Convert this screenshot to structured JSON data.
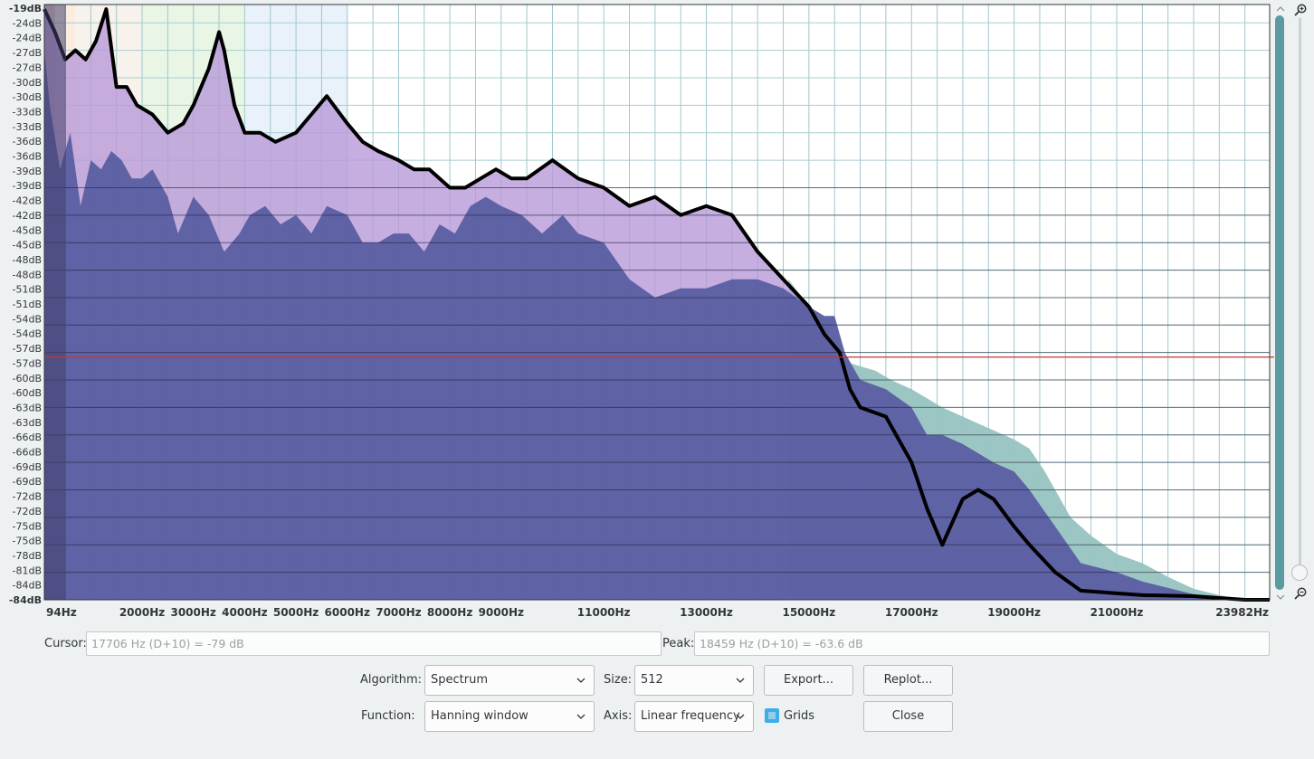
{
  "chart_data": {
    "type": "area",
    "y_ticks_left": [
      "-19dB",
      "-24dB",
      "-24dB",
      "-27dB",
      "-27dB",
      "-30dB",
      "-30dB",
      "-33dB",
      "-33dB",
      "-36dB",
      "-36dB",
      "-39dB",
      "-39dB",
      "-42dB",
      "-42dB",
      "-45dB",
      "-45dB",
      "-48dB",
      "-48dB",
      "-51dB",
      "-51dB",
      "-54dB",
      "-54dB",
      "-57dB",
      "-57dB",
      "-60dB",
      "-60dB",
      "-63dB",
      "-63dB",
      "-66dB",
      "-66dB",
      "-69dB",
      "-69dB",
      "-72dB",
      "-72dB",
      "-75dB",
      "-75dB",
      "-78dB",
      "-81dB",
      "-84dB",
      "-84dB"
    ],
    "x_ticks": [
      "94Hz",
      "2000Hz",
      "3000Hz",
      "4000Hz",
      "5000Hz",
      "6000Hz",
      "7000Hz",
      "8000Hz",
      "9000Hz",
      "11000Hz",
      "13000Hz",
      "15000Hz",
      "17000Hz",
      "19000Hz",
      "21000Hz",
      "23982Hz"
    ],
    "xlim": [
      94,
      23982
    ],
    "ylim": [
      -84,
      -19
    ],
    "grid": true,
    "series": [
      {
        "role": "upper-envelope",
        "color": "#000000",
        "x": [
          94,
          300,
          500,
          700,
          900,
          1100,
          1300,
          1500,
          1700,
          1900,
          2200,
          2500,
          2800,
          3000,
          3300,
          3500,
          3600,
          3800,
          4000,
          4300,
          4600,
          5000,
          5300,
          5600,
          6000,
          6300,
          6600,
          7000,
          7300,
          7600,
          8000,
          8300,
          8600,
          8900,
          9200,
          9500,
          10000,
          10500,
          11000,
          11500,
          12000,
          12500,
          13000,
          13500,
          14000,
          14500,
          15000,
          15300,
          15600,
          15800,
          16000,
          16500,
          17000,
          17300,
          17600,
          18000,
          18300,
          18600,
          19000,
          19300,
          19800,
          20300,
          21000,
          21500,
          22500,
          23500,
          23982
        ],
        "y": [
          -19.5,
          -22,
          -25,
          -24,
          -25,
          -23,
          -19.5,
          -28,
          -28,
          -30,
          -31,
          -33,
          -32,
          -30,
          -26,
          -22,
          -24,
          -30,
          -33,
          -33,
          -34,
          -33,
          -31,
          -29,
          -32,
          -34,
          -35,
          -36,
          -37,
          -37,
          -39,
          -39,
          -38,
          -37,
          -38,
          -38,
          -36,
          -38,
          -39,
          -41,
          -40,
          -42,
          -41,
          -42,
          -46,
          -49,
          -52,
          -55,
          -57,
          -61,
          -63,
          -64,
          -69,
          -74,
          -78,
          -73,
          -72,
          -73,
          -76,
          -78,
          -81,
          -83,
          -83.3,
          -83.5,
          -83.6,
          -84,
          -84
        ]
      },
      {
        "role": "lower-envelope",
        "color": "#5b5fa2",
        "x": [
          94,
          200,
          400,
          600,
          800,
          1000,
          1200,
          1400,
          1600,
          1800,
          2000,
          2200,
          2500,
          2700,
          3000,
          3300,
          3600,
          3900,
          4100,
          4400,
          4700,
          5000,
          5300,
          5600,
          6000,
          6300,
          6600,
          6900,
          7200,
          7500,
          7800,
          8100,
          8400,
          8700,
          9000,
          9400,
          9800,
          10200,
          10500,
          11000,
          11500,
          12000,
          12500,
          13000,
          13500,
          14000,
          14500,
          15000,
          15300,
          15500,
          15700,
          16000,
          16500,
          17000,
          17300,
          17600,
          18000,
          18300,
          18600,
          19000,
          19300,
          19800,
          20300,
          21000,
          21500,
          22500,
          23500,
          23982
        ],
        "y": [
          -24,
          -30,
          -37,
          -33,
          -41,
          -36,
          -37,
          -35,
          -36,
          -38,
          -38,
          -37,
          -40,
          -44,
          -40,
          -42,
          -46,
          -44,
          -42,
          -41,
          -43,
          -42,
          -44,
          -41,
          -42,
          -45,
          -45,
          -44,
          -44,
          -46,
          -43,
          -44,
          -41,
          -40,
          -41,
          -42,
          -44,
          -42,
          -44,
          -45,
          -49,
          -51,
          -50,
          -50,
          -49,
          -49,
          -50,
          -52,
          -53,
          -53,
          -57,
          -60,
          -61,
          -63,
          -66,
          -66,
          -67,
          -68,
          -69,
          -70,
          -72,
          -76,
          -80,
          -81,
          -82,
          -83.4,
          -84,
          -84
        ]
      },
      {
        "role": "secondary-high-band",
        "color": "#97c3c0",
        "x": [
          14600,
          15000,
          15300,
          15500,
          15700,
          16000,
          16300,
          16600,
          17000,
          17300,
          17600,
          18000,
          18400,
          18800,
          19000,
          19300,
          19600,
          19800,
          20100,
          20500,
          21000,
          21500,
          22000,
          22500,
          23000,
          23500,
          23982
        ],
        "y": [
          -49,
          -52,
          -54,
          -57,
          -58,
          -58.5,
          -59,
          -60,
          -61,
          -62,
          -63,
          -64,
          -65,
          -66,
          -66.5,
          -67.5,
          -70,
          -72,
          -75,
          -77,
          -79,
          -80,
          -81.5,
          -82.8,
          -83.5,
          -84,
          -84
        ]
      }
    ],
    "highlight_bands": [
      {
        "xlim": [
          94,
          300
        ],
        "color": "#e8b8b6"
      },
      {
        "xlim": [
          300,
          700
        ],
        "color": "#f8e5d4"
      },
      {
        "xlim": [
          700,
          2000
        ],
        "color": "#f6ede5"
      },
      {
        "xlim": [
          2000,
          4000
        ],
        "color": "#e2f3de"
      },
      {
        "xlim": [
          4000,
          6000
        ],
        "color": "#e2eef8"
      }
    ],
    "reference_line_db": -57.5,
    "reference_color": "#c0392b"
  },
  "cursor": {
    "label": "Cursor:",
    "value": "17706 Hz (D+10) = -79 dB"
  },
  "peak": {
    "label": "Peak:",
    "value": "18459 Hz (D+10) = -63.6 dB"
  },
  "controls": {
    "algorithm_label": "Algorithm:",
    "algorithm_value": "Spectrum",
    "size_label": "Size:",
    "size_value": "512",
    "export_label": "Export...",
    "replot_label": "Replot...",
    "function_label": "Function:",
    "function_value": "Hanning window",
    "axis_label": "Axis:",
    "axis_value": "Linear frequency",
    "grids_label": "Grids",
    "grids_checked": true,
    "close_label": "Close"
  }
}
